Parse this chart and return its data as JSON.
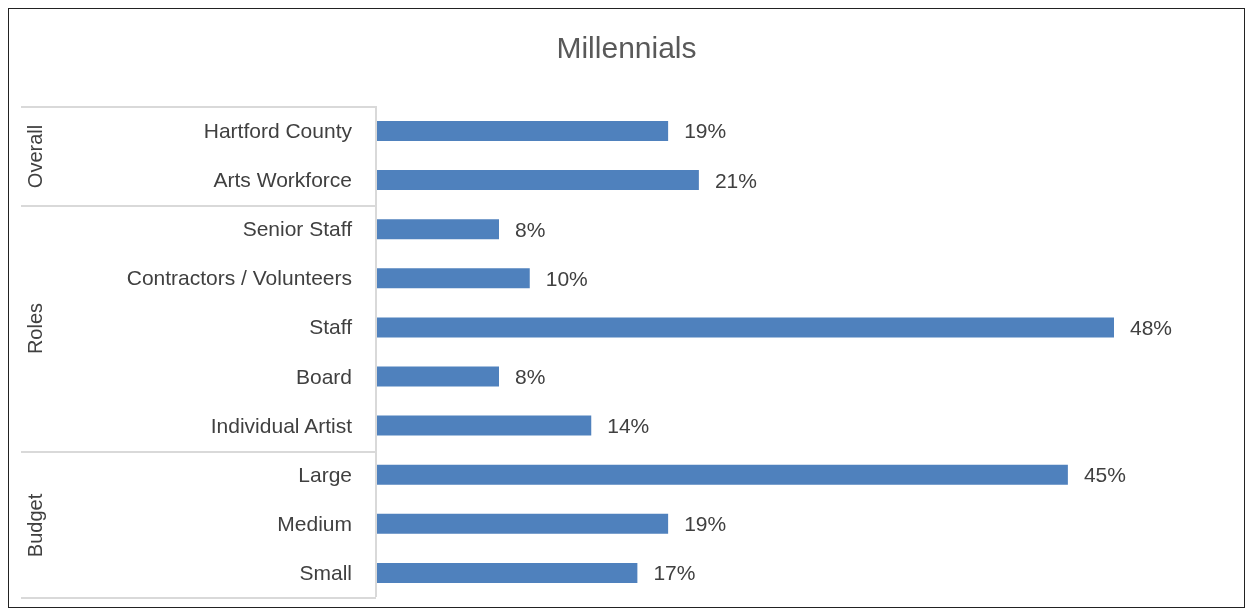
{
  "chart_data": {
    "type": "bar",
    "orientation": "horizontal",
    "title": "Millennials",
    "categories": [
      "Hartford County",
      "Arts Workforce",
      "Senior Staff",
      "Contractors / Volunteers",
      "Staff",
      "Board",
      "Individual Artist",
      "Large",
      "Medium",
      "Small"
    ],
    "values": [
      19,
      21,
      8,
      10,
      48,
      8,
      14,
      45,
      19,
      17
    ],
    "value_labels": [
      "19%",
      "21%",
      "8%",
      "10%",
      "48%",
      "8%",
      "14%",
      "45%",
      "19%",
      "17%"
    ],
    "color": "#4f81bd",
    "annotations": [
      "Overall",
      "Roles",
      "Budget"
    ],
    "grid": false,
    "legend": false
  }
}
